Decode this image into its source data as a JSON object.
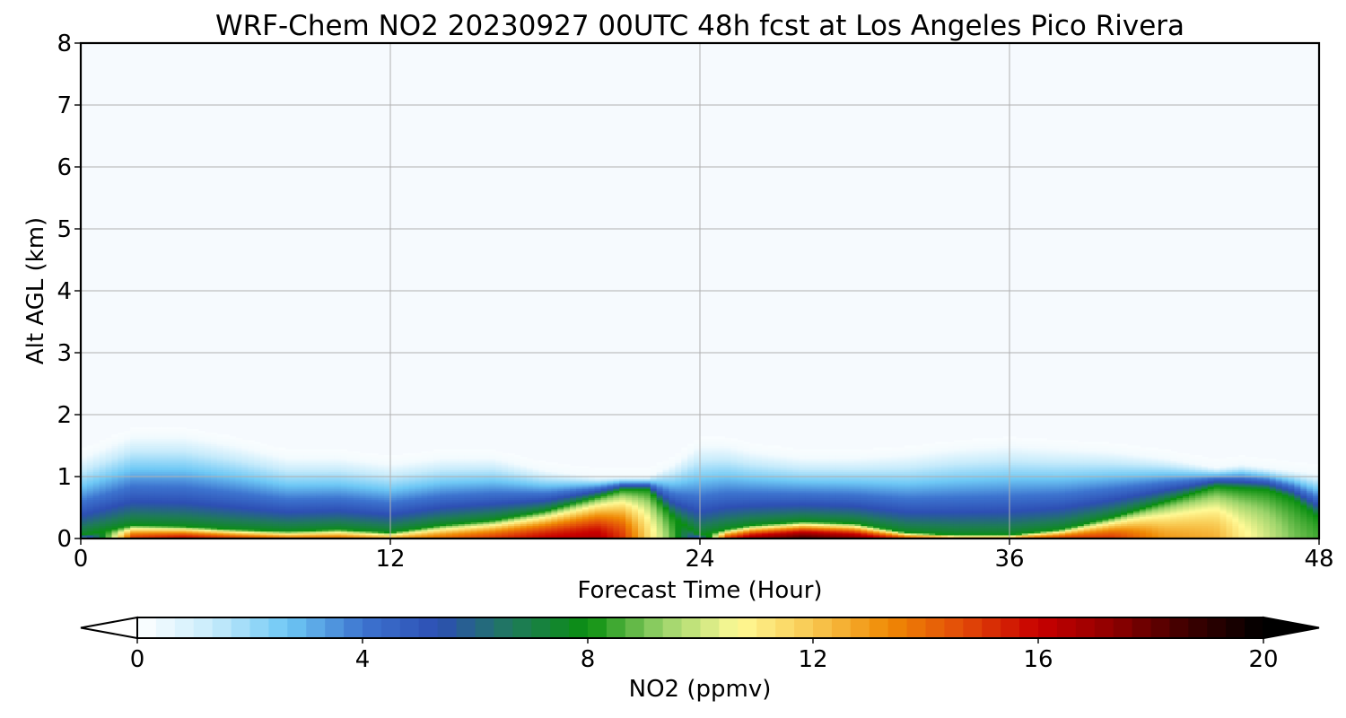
{
  "chart_data": {
    "type": "heatmap",
    "title": "WRF-Chem NO2  20230927 00UTC 48h fcst at Los Angeles Pico Rivera",
    "xlabel": "Forecast Time (Hour)",
    "ylabel": "Alt AGL (km)",
    "xlim": [
      0,
      48
    ],
    "ylim": [
      0,
      8
    ],
    "x_ticks": [
      "0",
      "12",
      "24",
      "36",
      "48"
    ],
    "y_ticks": [
      "0",
      "1",
      "2",
      "3",
      "4",
      "5",
      "6",
      "7",
      "8"
    ],
    "grid": true,
    "colorbar": {
      "label": "NO2  (ppmv)",
      "range": [
        0,
        20
      ],
      "ticks": [
        "0",
        "4",
        "8",
        "12",
        "16",
        "20"
      ],
      "extend": "both",
      "orientation": "horizontal",
      "colors": [
        "#ffffff",
        "#c7ebfb",
        "#6ec8f5",
        "#3d74cf",
        "#2d4fb4",
        "#1f7a5a",
        "#0a8f10",
        "#9ad36a",
        "#fffa96",
        "#f8c850",
        "#f08a05",
        "#e24a08",
        "#c80000",
        "#8e0000",
        "#3c0000",
        "#000000"
      ]
    },
    "profile_hours": [
      0,
      2,
      4,
      6,
      8,
      10,
      12,
      14,
      16,
      18,
      20,
      21,
      22,
      23,
      24,
      25,
      26,
      28,
      30,
      32,
      34,
      36,
      38,
      40,
      42,
      44,
      45,
      46,
      47,
      48
    ],
    "boundary_layer_top_km": [
      1.3,
      1.65,
      1.65,
      1.5,
      1.3,
      1.3,
      1.2,
      1.3,
      1.3,
      1.1,
      1.0,
      1.0,
      1.0,
      1.2,
      1.5,
      1.5,
      1.4,
      1.3,
      1.3,
      1.35,
      1.45,
      1.5,
      1.45,
      1.4,
      1.3,
      1.15,
      1.2,
      1.15,
      1.1,
      1.05
    ],
    "high_no2_layer_top_km": [
      0.05,
      0.22,
      0.2,
      0.15,
      0.12,
      0.15,
      0.1,
      0.22,
      0.3,
      0.45,
      0.68,
      0.8,
      0.8,
      0.35,
      0.05,
      0.15,
      0.22,
      0.28,
      0.25,
      0.1,
      0.06,
      0.06,
      0.15,
      0.35,
      0.6,
      0.85,
      0.82,
      0.8,
      0.65,
      0.35
    ],
    "peak_no2_ppmv": [
      2.0,
      15.0,
      16.0,
      15.0,
      14.0,
      14.0,
      13.0,
      14.0,
      15.0,
      16.0,
      16.5,
      15.0,
      11.5,
      8.5,
      4.0,
      15.0,
      17.0,
      18.5,
      17.5,
      15.0,
      14.0,
      14.0,
      15.0,
      15.0,
      13.0,
      12.5,
      11.0,
      10.0,
      9.0,
      8.5
    ]
  }
}
